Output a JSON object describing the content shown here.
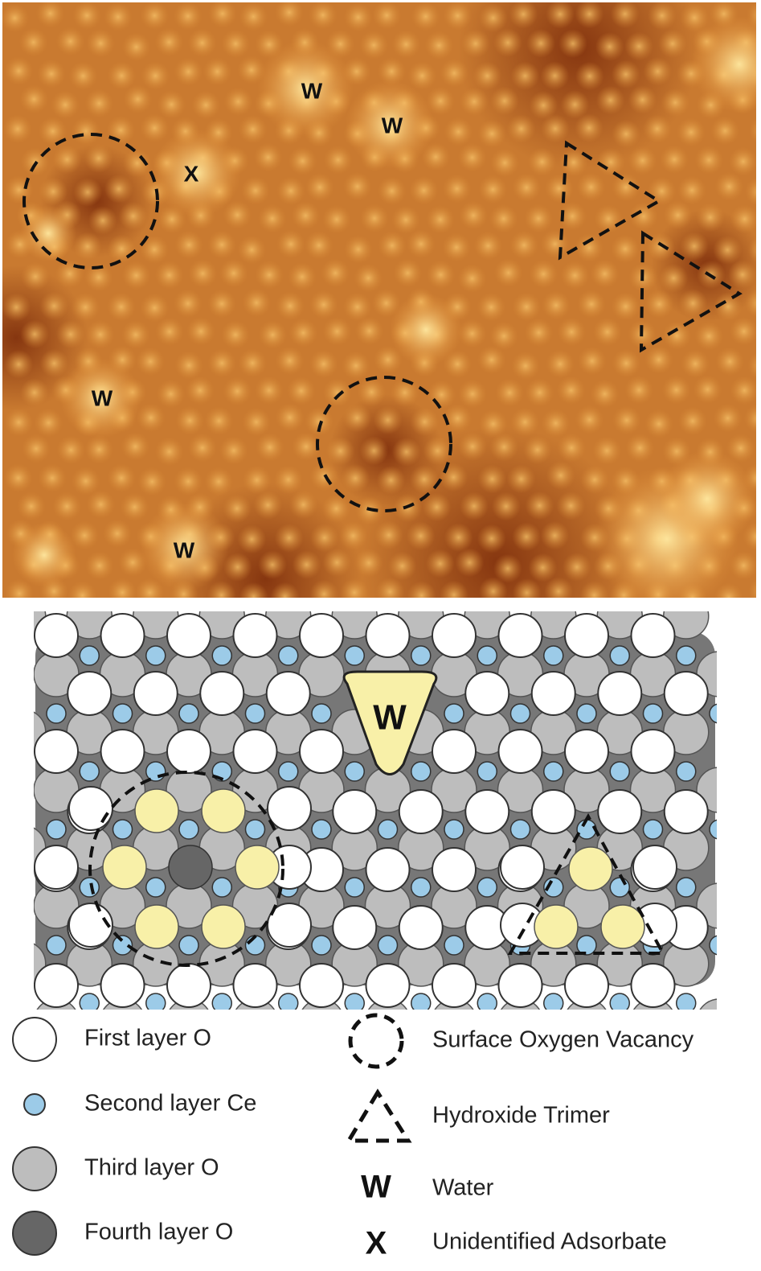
{
  "stm_image": {
    "labels": [
      "W",
      "W",
      "X",
      "W",
      "W"
    ]
  },
  "schematic": {
    "water_label": "W"
  },
  "legend": {
    "items": [
      {
        "label": "First layer O"
      },
      {
        "label": "Second layer Ce"
      },
      {
        "label": "Third layer O"
      },
      {
        "label": "Fourth layer O"
      },
      {
        "label": "Surface Oxygen Vacancy"
      },
      {
        "label": "Hydroxide Trimer"
      },
      {
        "symbol": "W",
        "label": "Water"
      },
      {
        "symbol": "X",
        "label": "Unidentified Adsorbate"
      }
    ]
  }
}
